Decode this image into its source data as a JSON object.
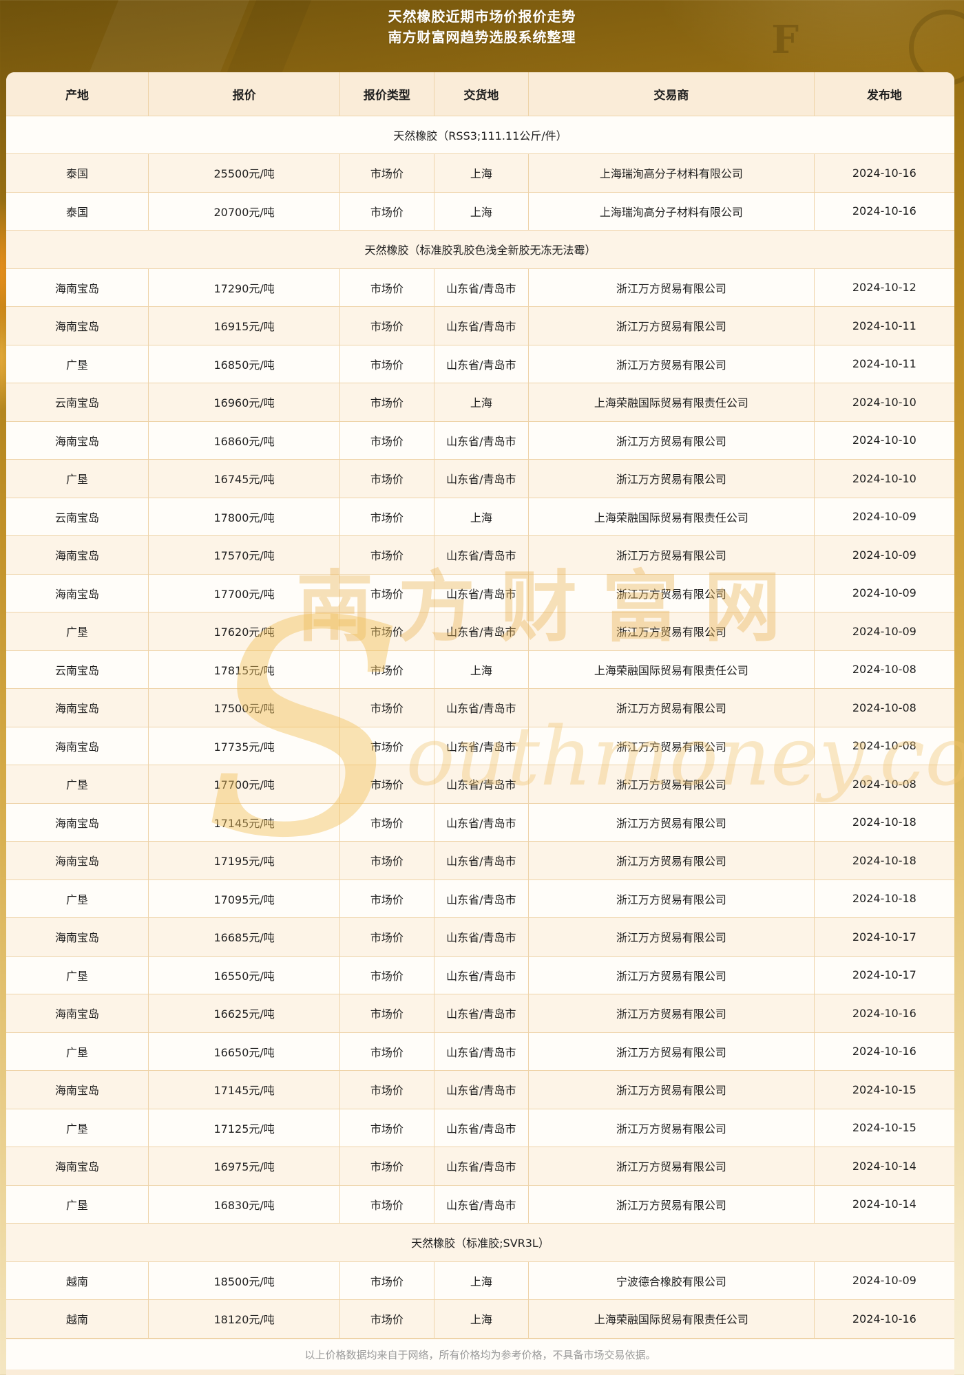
{
  "banner": {
    "title_line1": "天然橡胶近期市场价报价走势",
    "title_line2": "南方财富网趋势选股系统整理",
    "decor_letter": "F"
  },
  "watermark": {
    "brand_cn": "南方财富网",
    "brand_en": "Southmoney.com"
  },
  "table": {
    "columns": [
      "产地",
      "报价",
      "报价类型",
      "交货地",
      "交易商",
      "发布地"
    ],
    "rows": [
      {
        "type": "section",
        "label": "天然橡胶（RSS3;111.11公斤/件）"
      },
      {
        "type": "data",
        "origin": "泰国",
        "price": "25500元/吨",
        "price_type": "市场价",
        "delivery": "上海",
        "trader": "上海瑞洵高分子材料有限公司",
        "date": "2024-10-16"
      },
      {
        "type": "data",
        "origin": "泰国",
        "price": "20700元/吨",
        "price_type": "市场价",
        "delivery": "上海",
        "trader": "上海瑞洵高分子材料有限公司",
        "date": "2024-10-16"
      },
      {
        "type": "section",
        "label": "天然橡胶（标准胶乳胶色浅全新胶无冻无法霉）"
      },
      {
        "type": "data",
        "origin": "海南宝岛",
        "price": "17290元/吨",
        "price_type": "市场价",
        "delivery": "山东省/青岛市",
        "trader": "浙江万方贸易有限公司",
        "date": "2024-10-12"
      },
      {
        "type": "data",
        "origin": "海南宝岛",
        "price": "16915元/吨",
        "price_type": "市场价",
        "delivery": "山东省/青岛市",
        "trader": "浙江万方贸易有限公司",
        "date": "2024-10-11"
      },
      {
        "type": "data",
        "origin": "广垦",
        "price": "16850元/吨",
        "price_type": "市场价",
        "delivery": "山东省/青岛市",
        "trader": "浙江万方贸易有限公司",
        "date": "2024-10-11"
      },
      {
        "type": "data",
        "origin": "云南宝岛",
        "price": "16960元/吨",
        "price_type": "市场价",
        "delivery": "上海",
        "trader": "上海荣融国际贸易有限责任公司",
        "date": "2024-10-10"
      },
      {
        "type": "data",
        "origin": "海南宝岛",
        "price": "16860元/吨",
        "price_type": "市场价",
        "delivery": "山东省/青岛市",
        "trader": "浙江万方贸易有限公司",
        "date": "2024-10-10"
      },
      {
        "type": "data",
        "origin": "广垦",
        "price": "16745元/吨",
        "price_type": "市场价",
        "delivery": "山东省/青岛市",
        "trader": "浙江万方贸易有限公司",
        "date": "2024-10-10"
      },
      {
        "type": "data",
        "origin": "云南宝岛",
        "price": "17800元/吨",
        "price_type": "市场价",
        "delivery": "上海",
        "trader": "上海荣融国际贸易有限责任公司",
        "date": "2024-10-09"
      },
      {
        "type": "data",
        "origin": "海南宝岛",
        "price": "17570元/吨",
        "price_type": "市场价",
        "delivery": "山东省/青岛市",
        "trader": "浙江万方贸易有限公司",
        "date": "2024-10-09"
      },
      {
        "type": "data",
        "origin": "海南宝岛",
        "price": "17700元/吨",
        "price_type": "市场价",
        "delivery": "山东省/青岛市",
        "trader": "浙江万方贸易有限公司",
        "date": "2024-10-09"
      },
      {
        "type": "data",
        "origin": "广垦",
        "price": "17620元/吨",
        "price_type": "市场价",
        "delivery": "山东省/青岛市",
        "trader": "浙江万方贸易有限公司",
        "date": "2024-10-09"
      },
      {
        "type": "data",
        "origin": "云南宝岛",
        "price": "17815元/吨",
        "price_type": "市场价",
        "delivery": "上海",
        "trader": "上海荣融国际贸易有限责任公司",
        "date": "2024-10-08"
      },
      {
        "type": "data",
        "origin": "海南宝岛",
        "price": "17500元/吨",
        "price_type": "市场价",
        "delivery": "山东省/青岛市",
        "trader": "浙江万方贸易有限公司",
        "date": "2024-10-08"
      },
      {
        "type": "data",
        "origin": "海南宝岛",
        "price": "17735元/吨",
        "price_type": "市场价",
        "delivery": "山东省/青岛市",
        "trader": "浙江万方贸易有限公司",
        "date": "2024-10-08"
      },
      {
        "type": "data",
        "origin": "广垦",
        "price": "17700元/吨",
        "price_type": "市场价",
        "delivery": "山东省/青岛市",
        "trader": "浙江万方贸易有限公司",
        "date": "2024-10-08"
      },
      {
        "type": "data",
        "origin": "海南宝岛",
        "price": "17145元/吨",
        "price_type": "市场价",
        "delivery": "山东省/青岛市",
        "trader": "浙江万方贸易有限公司",
        "date": "2024-10-18"
      },
      {
        "type": "data",
        "origin": "海南宝岛",
        "price": "17195元/吨",
        "price_type": "市场价",
        "delivery": "山东省/青岛市",
        "trader": "浙江万方贸易有限公司",
        "date": "2024-10-18"
      },
      {
        "type": "data",
        "origin": "广垦",
        "price": "17095元/吨",
        "price_type": "市场价",
        "delivery": "山东省/青岛市",
        "trader": "浙江万方贸易有限公司",
        "date": "2024-10-18"
      },
      {
        "type": "data",
        "origin": "海南宝岛",
        "price": "16685元/吨",
        "price_type": "市场价",
        "delivery": "山东省/青岛市",
        "trader": "浙江万方贸易有限公司",
        "date": "2024-10-17"
      },
      {
        "type": "data",
        "origin": "广垦",
        "price": "16550元/吨",
        "price_type": "市场价",
        "delivery": "山东省/青岛市",
        "trader": "浙江万方贸易有限公司",
        "date": "2024-10-17"
      },
      {
        "type": "data",
        "origin": "海南宝岛",
        "price": "16625元/吨",
        "price_type": "市场价",
        "delivery": "山东省/青岛市",
        "trader": "浙江万方贸易有限公司",
        "date": "2024-10-16"
      },
      {
        "type": "data",
        "origin": "广垦",
        "price": "16650元/吨",
        "price_type": "市场价",
        "delivery": "山东省/青岛市",
        "trader": "浙江万方贸易有限公司",
        "date": "2024-10-16"
      },
      {
        "type": "data",
        "origin": "海南宝岛",
        "price": "17145元/吨",
        "price_type": "市场价",
        "delivery": "山东省/青岛市",
        "trader": "浙江万方贸易有限公司",
        "date": "2024-10-15"
      },
      {
        "type": "data",
        "origin": "广垦",
        "price": "17125元/吨",
        "price_type": "市场价",
        "delivery": "山东省/青岛市",
        "trader": "浙江万方贸易有限公司",
        "date": "2024-10-15"
      },
      {
        "type": "data",
        "origin": "海南宝岛",
        "price": "16975元/吨",
        "price_type": "市场价",
        "delivery": "山东省/青岛市",
        "trader": "浙江万方贸易有限公司",
        "date": "2024-10-14"
      },
      {
        "type": "data",
        "origin": "广垦",
        "price": "16830元/吨",
        "price_type": "市场价",
        "delivery": "山东省/青岛市",
        "trader": "浙江万方贸易有限公司",
        "date": "2024-10-14"
      },
      {
        "type": "section",
        "label": "天然橡胶（标准胶;SVR3L）"
      },
      {
        "type": "data",
        "origin": "越南",
        "price": "18500元/吨",
        "price_type": "市场价",
        "delivery": "上海",
        "trader": "宁波德合橡胶有限公司",
        "date": "2024-10-09"
      },
      {
        "type": "data",
        "origin": "越南",
        "price": "18120元/吨",
        "price_type": "市场价",
        "delivery": "上海",
        "trader": "上海荣融国际贸易有限责任公司",
        "date": "2024-10-16"
      }
    ]
  },
  "footer": {
    "disclaimer": "以上价格数据均来自于网络，所有价格均为参考价格，不具备市场交易依据。"
  },
  "colors": {
    "banner_gold_dark": "#6f520c",
    "banner_gold": "#a87c17",
    "header_bg": "#faecd8",
    "row_cream": "#fdf4e7",
    "row_white": "#fffdf9",
    "border_tan": "#eed3a8",
    "text_dark": "#1f1f1f",
    "footer_text": "#9a9a9a",
    "watermark_gold": "#eab44f"
  }
}
